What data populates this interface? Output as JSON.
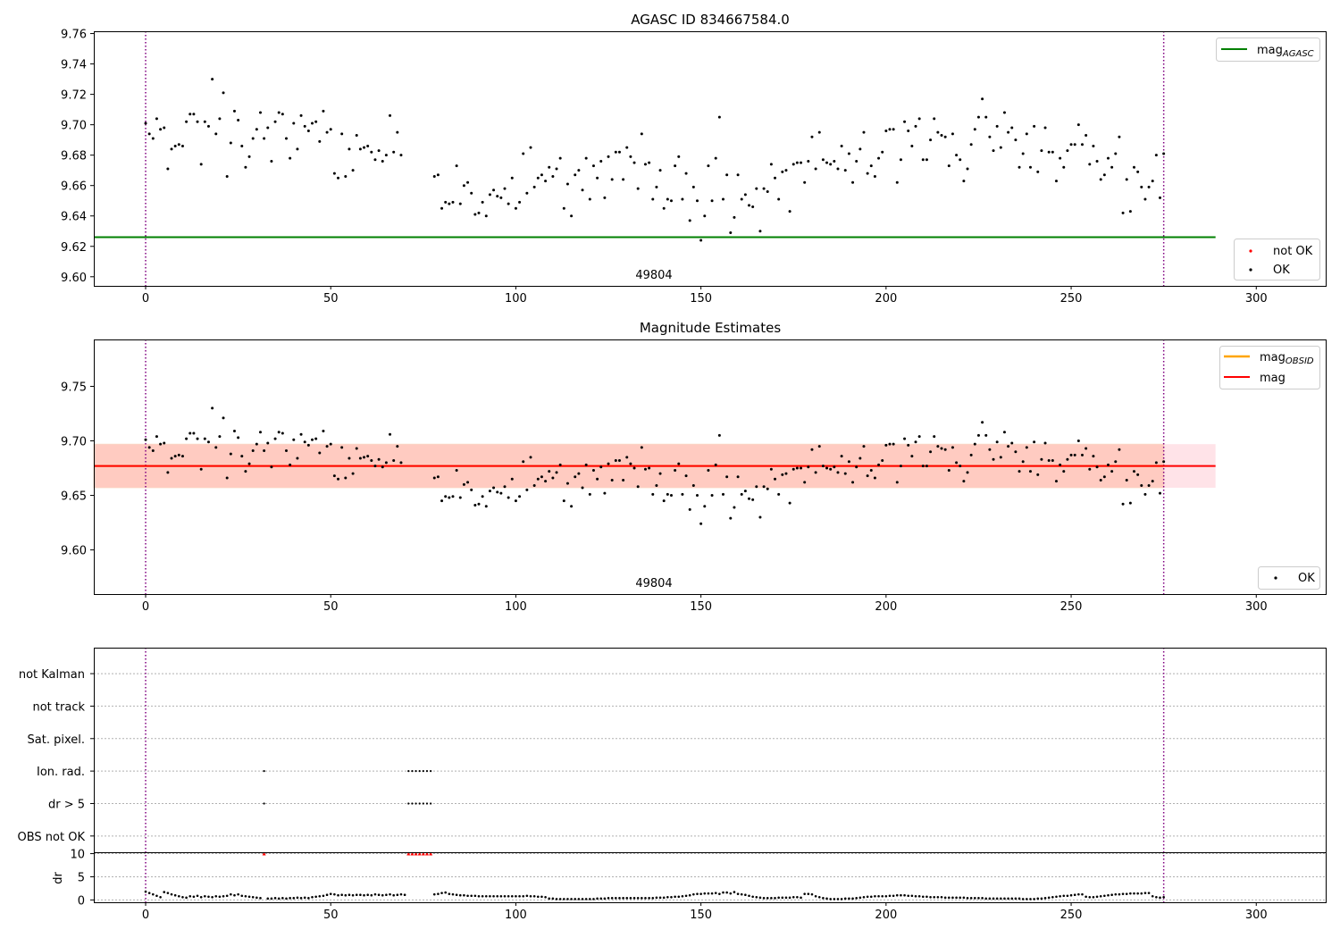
{
  "figure": {
    "panel1_title": "AGASC ID 834667584.0",
    "panel2_title": "Magnitude Estimates"
  },
  "colors": {
    "agasc_line": "#008000",
    "obsid_line": "#ffa500",
    "mag_line": "#ff0000",
    "band_outer": "#ffc0cb",
    "band_inner": "#ffa07a",
    "vline": "#800080",
    "points": "#000000",
    "not_ok": "#ff0000"
  },
  "chart_data": [
    {
      "type": "scatter",
      "title": "AGASC ID 834667584.0",
      "xlim": [
        -14,
        319
      ],
      "ylim": [
        9.594,
        9.7615
      ],
      "xticks": [
        "0",
        "50",
        "100",
        "150",
        "200",
        "250",
        "300"
      ],
      "yticks": [
        "9.60",
        "9.62",
        "9.64",
        "9.66",
        "9.68",
        "9.70",
        "9.72",
        "9.74",
        "9.76"
      ],
      "annotation": "49804",
      "vlines_x": [
        0,
        275
      ],
      "mag_agasc": 9.626,
      "legend_upper": [
        "mag",
        "AGASC"
      ],
      "legend_lower": [
        "not OK",
        "OK"
      ],
      "series": [
        {
          "name": "OK",
          "y": [
            9.701,
            9.694,
            9.691,
            9.704,
            9.697,
            9.698,
            9.671,
            9.684,
            9.686,
            9.687,
            9.686,
            9.702,
            9.707,
            9.707,
            9.702,
            9.674,
            9.702,
            9.699,
            9.73,
            9.694,
            9.704,
            9.721,
            9.666,
            9.688,
            9.709,
            9.703,
            9.686,
            9.672,
            9.679,
            9.691,
            9.697,
            9.708,
            9.691,
            9.698,
            9.676,
            9.702,
            9.708,
            9.707,
            9.691,
            9.678,
            9.701,
            9.684,
            9.706,
            9.699,
            9.696,
            9.701,
            9.702,
            9.689,
            9.709,
            9.695,
            9.697,
            9.668,
            9.665,
            9.694,
            9.666,
            9.684,
            9.67,
            9.693,
            9.684,
            9.685,
            9.686,
            9.682,
            9.677,
            9.683,
            9.676,
            9.68,
            9.706,
            9.682,
            9.695,
            9.68,
            null,
            null,
            null,
            null,
            null,
            null,
            null,
            null,
            9.666,
            9.667,
            9.645,
            9.649,
            9.648,
            9.649,
            9.673,
            9.648,
            9.66,
            9.662,
            9.655,
            9.641,
            9.642,
            9.649,
            9.64,
            9.654,
            9.657,
            9.653,
            9.652,
            9.658,
            9.648,
            9.665,
            9.645,
            9.649,
            9.681,
            9.655,
            9.685,
            9.659,
            9.665,
            9.667,
            9.663,
            9.672,
            9.666,
            9.671,
            9.678,
            9.645,
            9.661,
            9.64,
            9.667,
            9.67,
            9.657,
            9.678,
            9.651,
            9.673,
            9.665,
            9.676,
            9.652,
            9.679,
            9.664,
            9.682,
            9.682,
            9.664,
            9.685,
            9.679,
            9.675,
            9.658,
            9.694,
            9.674,
            9.675,
            9.651,
            9.659,
            9.67,
            9.645,
            9.651,
            9.65,
            9.673,
            9.679,
            9.651,
            9.668,
            9.637,
            9.659,
            9.65,
            9.624,
            9.64,
            9.673,
            9.65,
            9.678,
            9.705,
            9.651,
            9.667,
            9.629,
            9.639,
            9.667,
            9.651,
            9.654,
            9.647,
            9.646,
            9.658,
            9.63,
            9.658,
            9.656,
            9.674,
            9.665,
            9.651,
            9.669,
            9.67,
            9.643,
            9.674,
            9.675,
            9.675,
            9.662,
            9.676,
            9.692,
            9.671,
            9.695,
            9.677,
            9.675,
            9.674,
            9.676,
            9.671,
            9.686,
            9.67,
            9.681,
            9.662,
            9.676,
            9.684,
            9.695,
            9.668,
            9.673,
            9.666,
            9.678,
            9.682,
            9.696,
            9.697,
            9.697,
            9.662,
            9.677,
            9.702,
            9.696,
            9.686,
            9.699,
            9.704,
            9.677,
            9.677,
            9.69,
            9.704,
            9.695,
            9.693,
            9.692,
            9.673,
            9.694,
            9.68,
            9.677,
            9.663,
            9.671,
            9.687,
            9.697,
            9.705,
            9.717,
            9.705,
            9.692,
            9.683,
            9.699,
            9.685,
            9.708,
            9.695,
            9.698,
            9.69,
            9.672,
            9.681,
            9.694,
            9.672,
            9.699,
            9.669,
            9.683,
            9.698,
            9.682,
            9.682,
            9.663,
            9.678,
            9.672,
            9.683,
            9.687,
            9.687,
            9.7,
            9.687,
            9.693,
            9.674,
            9.686,
            9.676,
            9.664,
            9.667,
            9.678,
            9.672,
            9.681,
            9.692,
            9.642,
            9.664,
            9.643,
            9.672,
            9.669,
            9.659,
            9.651,
            9.659,
            9.663,
            9.68,
            9.652,
            9.681
          ]
        }
      ]
    },
    {
      "type": "scatter",
      "title": "Magnitude Estimates",
      "xlim": [
        -14,
        319
      ],
      "ylim": [
        9.5595,
        9.793
      ],
      "xticks": [
        "0",
        "50",
        "100",
        "150",
        "200",
        "250",
        "300"
      ],
      "yticks": [
        "9.60",
        "9.65",
        "9.70",
        "9.75"
      ],
      "annotation": "49804",
      "vlines_x": [
        0,
        275
      ],
      "mag": 9.677,
      "band_outer": [
        9.657,
        9.697
      ],
      "band_inner_x": [
        0,
        275
      ],
      "legend_upper": [
        [
          "mag",
          "OBSID"
        ],
        [
          "mag",
          ""
        ]
      ],
      "legend_lower": [
        "OK"
      ],
      "reuse_series_from_panel": 1
    },
    {
      "type": "scatter",
      "title": "",
      "xlim": [
        -14,
        319
      ],
      "ylim_flags": [
        -0.5,
        5.8
      ],
      "ylim_dr": [
        -0.5,
        10.3
      ],
      "xticks": [
        "0",
        "50",
        "100",
        "150",
        "200",
        "250",
        "300"
      ],
      "flag_labels": [
        "OBS not OK",
        "dr > 5",
        "Ion. rad.",
        "Sat. pixel.",
        "not track",
        "not Kalman"
      ],
      "dr_yticks": [
        "0",
        "5",
        "10"
      ],
      "ylabel_dr": "dr",
      "vlines_x": [
        0,
        275
      ],
      "flag_points": {
        "dr > 5": [
          32,
          71,
          72,
          73,
          74,
          75,
          76,
          77
        ],
        "Ion. rad.": [
          32,
          71,
          72,
          73,
          74,
          75,
          76,
          77
        ]
      },
      "dr_clipped_x": [
        32,
        71,
        72,
        73,
        74,
        75,
        76,
        77
      ],
      "dr_clipped_value": 10,
      "dr": [
        1.8,
        1.5,
        1.2,
        0.9,
        0.6,
        1.7,
        1.5,
        1.2,
        1.0,
        0.8,
        0.6,
        0.5,
        0.8,
        0.7,
        0.9,
        0.6,
        0.8,
        0.7,
        0.6,
        0.8,
        0.7,
        0.8,
        0.9,
        1.2,
        1.0,
        1.2,
        0.9,
        0.8,
        0.7,
        0.6,
        0.5,
        0.4,
        null,
        0.3,
        0.3,
        0.4,
        0.3,
        0.4,
        0.3,
        0.4,
        0.4,
        0.5,
        0.4,
        0.5,
        0.4,
        0.6,
        0.7,
        0.8,
        0.9,
        1.1,
        1.3,
        1.2,
        1.0,
        1.1,
        1.0,
        1.1,
        1.0,
        1.1,
        1.1,
        1.0,
        1.1,
        1.0,
        1.2,
        1.1,
        1.0,
        1.1,
        1.2,
        1.0,
        1.1,
        1.2,
        1.1,
        null,
        null,
        null,
        null,
        null,
        null,
        null,
        1.2,
        1.3,
        1.5,
        1.6,
        1.3,
        1.2,
        1.1,
        1.0,
        1.0,
        0.9,
        0.9,
        0.9,
        0.8,
        0.8,
        0.8,
        0.8,
        0.8,
        0.8,
        0.8,
        0.8,
        0.8,
        0.8,
        0.8,
        0.8,
        0.8,
        0.9,
        0.8,
        0.8,
        0.7,
        0.7,
        0.6,
        0.3,
        0.3,
        0.2,
        0.2,
        0.2,
        0.2,
        0.2,
        0.2,
        0.2,
        0.2,
        0.2,
        0.2,
        0.2,
        0.3,
        0.3,
        0.3,
        0.4,
        0.4,
        0.4,
        0.4,
        0.4,
        0.4,
        0.4,
        0.4,
        0.4,
        0.4,
        0.4,
        0.4,
        0.4,
        0.5,
        0.5,
        0.5,
        0.6,
        0.6,
        0.7,
        0.7,
        0.8,
        0.9,
        1.0,
        1.2,
        1.3,
        1.3,
        1.4,
        1.4,
        1.4,
        1.5,
        1.3,
        1.6,
        1.6,
        1.4,
        1.7,
        1.3,
        1.2,
        1.1,
        0.9,
        0.7,
        0.6,
        0.5,
        0.4,
        0.4,
        0.4,
        0.4,
        0.5,
        0.5,
        0.5,
        0.5,
        0.6,
        0.6,
        0.5,
        1.3,
        1.3,
        1.2,
        0.8,
        0.6,
        0.4,
        0.3,
        0.2,
        0.2,
        0.2,
        0.2,
        0.3,
        0.3,
        0.3,
        0.4,
        0.5,
        0.6,
        0.7,
        0.7,
        0.8,
        0.8,
        0.8,
        0.8,
        0.9,
        0.9,
        1.0,
        1.0,
        1.0,
        0.9,
        0.9,
        0.8,
        0.8,
        0.7,
        0.7,
        0.6,
        0.6,
        0.6,
        0.6,
        0.5,
        0.5,
        0.5,
        0.5,
        0.5,
        0.5,
        0.4,
        0.4,
        0.4,
        0.4,
        0.4,
        0.3,
        0.3,
        0.3,
        0.3,
        0.3,
        0.3,
        0.3,
        0.3,
        0.3,
        0.3,
        0.2,
        0.2,
        0.2,
        0.2,
        0.3,
        0.3,
        0.4,
        0.5,
        0.6,
        0.7,
        0.8,
        0.9,
        0.9,
        1.0,
        1.1,
        1.2,
        1.2,
        0.7,
        0.6,
        0.6,
        0.7,
        0.8,
        0.9,
        1.0,
        1.1,
        1.2,
        1.2,
        1.3,
        1.3,
        1.4,
        1.4,
        1.4,
        1.4,
        1.5,
        1.5,
        0.8,
        0.6,
        0.5,
        0.6
      ]
    }
  ]
}
